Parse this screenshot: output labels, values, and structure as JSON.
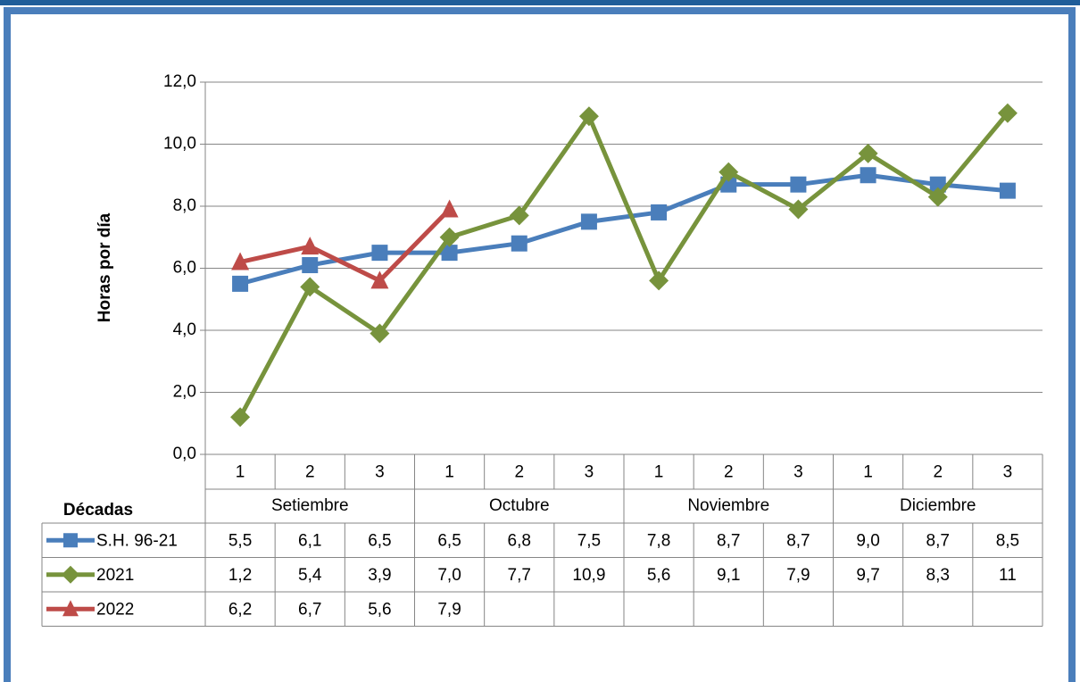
{
  "chart_data": {
    "type": "line",
    "y_label": "Horas por día",
    "x_label": "Décadas",
    "categories": [
      "1",
      "2",
      "3",
      "1",
      "2",
      "3",
      "1",
      "2",
      "3",
      "1",
      "2",
      "3"
    ],
    "groups": [
      "Setiembre",
      "Octubre",
      "Noviembre",
      "Diciembre"
    ],
    "ylim": [
      0,
      12
    ],
    "yticks": [
      {
        "value": 0,
        "label": "0,0"
      },
      {
        "value": 2,
        "label": "2,0"
      },
      {
        "value": 4,
        "label": "4,0"
      },
      {
        "value": 6,
        "label": "6,0"
      },
      {
        "value": 8,
        "label": "8,0"
      },
      {
        "value": 10,
        "label": "10,0"
      },
      {
        "value": 12,
        "label": "12,0"
      }
    ],
    "grid": true,
    "series": [
      {
        "name": "S.H. 96-21",
        "color": "#4a7ebb",
        "marker": "square",
        "values": [
          5.5,
          6.1,
          6.5,
          6.5,
          6.8,
          7.5,
          7.8,
          8.7,
          8.7,
          9.0,
          8.7,
          8.5
        ],
        "value_labels": [
          "5,5",
          "6,1",
          "6,5",
          "6,5",
          "6,8",
          "7,5",
          "7,8",
          "8,7",
          "8,7",
          "9,0",
          "8,7",
          "8,5"
        ]
      },
      {
        "name": "2021",
        "color": "#77933c",
        "marker": "diamond",
        "values": [
          1.2,
          5.4,
          3.9,
          7.0,
          7.7,
          10.9,
          5.6,
          9.1,
          7.9,
          9.7,
          8.3,
          11
        ],
        "value_labels": [
          "1,2",
          "5,4",
          "3,9",
          "7,0",
          "7,7",
          "10,9",
          "5,6",
          "9,1",
          "7,9",
          "9,7",
          "8,3",
          "11"
        ]
      },
      {
        "name": "2022",
        "color": "#be4b48",
        "marker": "triangle",
        "values": [
          6.2,
          6.7,
          5.6,
          7.9,
          null,
          null,
          null,
          null,
          null,
          null,
          null,
          null
        ],
        "value_labels": [
          "6,2",
          "6,7",
          "5,6",
          "7,9",
          null,
          null,
          null,
          null,
          null,
          null,
          null,
          null
        ]
      }
    ]
  }
}
